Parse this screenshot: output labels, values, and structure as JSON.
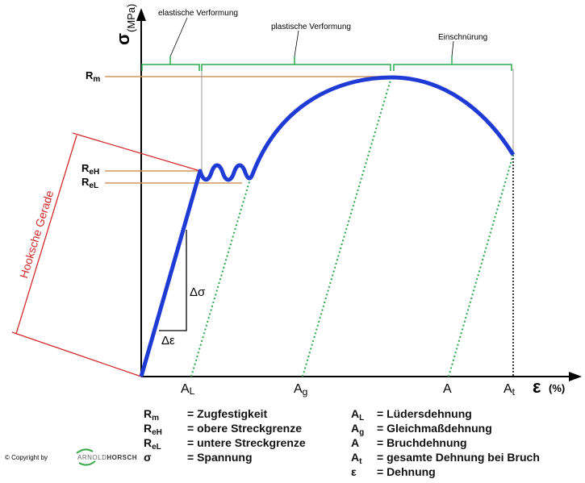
{
  "axes": {
    "y_symbol": "σ",
    "y_unit": "(MPa)",
    "x_symbol": "ε",
    "x_unit": "(%)"
  },
  "zones": [
    "elastische Verformung",
    "plastische Verformung",
    "Einschnürung"
  ],
  "y_markers": [
    {
      "base": "R",
      "sub": "m"
    },
    {
      "base": "R",
      "sub": "eH"
    },
    {
      "base": "R",
      "sub": "eL"
    }
  ],
  "x_markers": [
    {
      "base": "A",
      "sub": "L"
    },
    {
      "base": "A",
      "sub": "g"
    },
    {
      "base": "A"
    },
    {
      "base": "A",
      "sub": "t"
    }
  ],
  "hooke_label": "Hooksche Gerade",
  "delta_sigma": "Δσ",
  "delta_epsilon": "Δε",
  "legend_left": [
    {
      "base": "R",
      "sub": "m",
      "text": "= Zugfestigkeit"
    },
    {
      "base": "R",
      "sub": "eH",
      "text": "= obere Streckgrenze"
    },
    {
      "base": "R",
      "sub": "eL",
      "text": "= untere Streckgrenze"
    },
    {
      "base": "σ",
      "text": "= Spannung"
    }
  ],
  "legend_right": [
    {
      "base": "A",
      "sub": "L",
      "text": "= Lüdersdehnung"
    },
    {
      "base": "A",
      "sub": "g",
      "text": "= Gleichmaßdehnung"
    },
    {
      "base": "A",
      "text": "= Bruchdehnung"
    },
    {
      "base": "A",
      "sub": "t",
      "text": "= gesamte Dehnung bei Bruch"
    },
    {
      "base": "ε",
      "text": "= Dehnung"
    }
  ],
  "copyright": {
    "prefix": "© Copyright by",
    "brand_a": "ARNOLD",
    "brand_b": "HORSCH"
  }
}
